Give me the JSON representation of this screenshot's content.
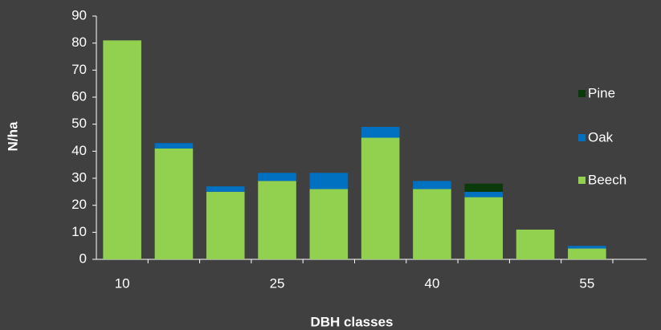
{
  "chart_data": {
    "type": "stacked_bar",
    "x_label": "DBH classes",
    "y_label": "N/ha",
    "categories": [
      "10",
      null,
      null,
      "25",
      null,
      null,
      "40",
      null,
      null,
      "55"
    ],
    "series": [
      {
        "name": "Beech",
        "color": "#92d050",
        "values": [
          81,
          41,
          25,
          29,
          26,
          45,
          26,
          23,
          11,
          4
        ]
      },
      {
        "name": "Oak",
        "color": "#0070c0",
        "values": [
          0,
          2,
          2,
          3,
          6,
          4,
          3,
          2,
          0,
          1
        ]
      },
      {
        "name": "Pine",
        "color": "#0a3a0a",
        "values": [
          0,
          0,
          0,
          0,
          0,
          0,
          0,
          3,
          0,
          0
        ]
      }
    ],
    "ylim": [
      0,
      90
    ],
    "yticks": [
      0,
      10,
      20,
      30,
      40,
      50,
      60,
      70,
      80,
      90
    ],
    "legend": "right"
  }
}
